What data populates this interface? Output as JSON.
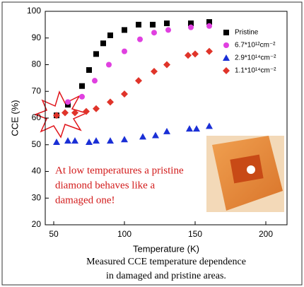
{
  "chart_data": {
    "type": "scatter",
    "x_label": "Temperature (K)",
    "y_label": "CCE (%)",
    "xlim": [
      44,
      215
    ],
    "ylim": [
      20,
      100
    ],
    "xticks": [
      50,
      100,
      150,
      200
    ],
    "yticks": [
      20,
      30,
      40,
      50,
      60,
      70,
      80,
      90,
      100
    ],
    "legend": "upper right",
    "series": [
      {
        "name": "Pristine",
        "color": "#000000",
        "marker": "square",
        "x": [
          52,
          60,
          70,
          75,
          80,
          85,
          90,
          100,
          110,
          120,
          130,
          147,
          160
        ],
        "values": [
          61,
          65,
          72,
          78,
          84,
          88,
          91,
          93,
          95,
          95,
          95.5,
          95.5,
          96
        ]
      },
      {
        "name": "6.7*10¹²cm⁻²",
        "color": "#e040e0",
        "marker": "circle",
        "x": [
          60,
          70,
          79,
          89,
          100,
          111,
          121,
          131,
          147,
          160
        ],
        "values": [
          66,
          68,
          74,
          80,
          85,
          89.5,
          92,
          93,
          94,
          94.5
        ]
      },
      {
        "name": "2.9*10¹⁴cm⁻²",
        "color": "#1a2fd6",
        "marker": "triangle",
        "x": [
          52,
          60,
          65,
          75,
          80,
          90,
          100,
          113,
          122,
          130,
          146,
          151,
          160
        ],
        "values": [
          51,
          51.5,
          51.5,
          51,
          51.5,
          51.5,
          52,
          53,
          53.5,
          55,
          56,
          56,
          57
        ]
      },
      {
        "name": "1.1*10¹⁴cm⁻²",
        "color": "#e0342a",
        "marker": "diamond",
        "x": [
          52,
          58,
          65,
          73,
          80,
          90,
          100,
          110,
          121,
          130,
          145,
          150,
          160
        ],
        "values": [
          61,
          62,
          62,
          62.5,
          63.5,
          66,
          69,
          74,
          77.5,
          80,
          83.5,
          84,
          85
        ]
      }
    ],
    "annotation": [
      "At low temperatures a pristine",
      "diamond behaves like a",
      "damaged one!"
    ],
    "caption": [
      "Measured CCE temperature dependence",
      "in damaged and pristine areas."
    ]
  }
}
